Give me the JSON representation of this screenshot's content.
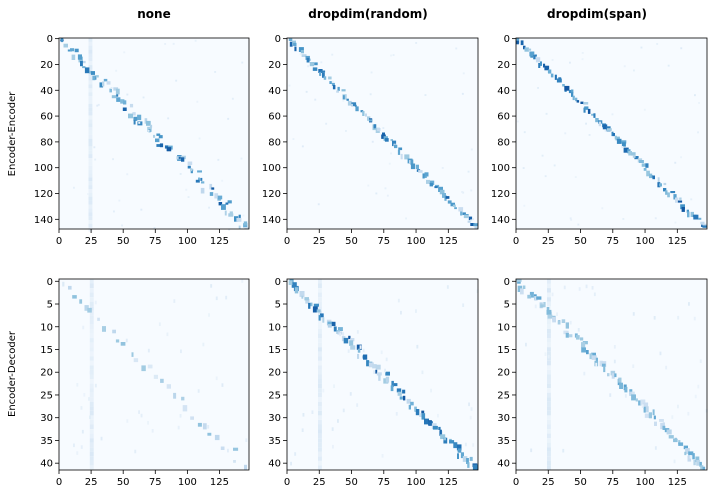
{
  "columns": [
    "none",
    "dropdim(random)",
    "dropdim(span)"
  ],
  "rows": [
    "Encoder-Encoder",
    "Encoder-Decoder"
  ],
  "chart_data": [
    {
      "type": "heatmap",
      "row": "Encoder-Encoder",
      "column": "none",
      "x_ticks": [
        0,
        25,
        50,
        75,
        100,
        125
      ],
      "y_ticks": [
        0,
        20,
        40,
        60,
        80,
        100,
        120,
        140
      ],
      "x_range": [
        0,
        148
      ],
      "y_range": [
        0,
        148
      ],
      "colormap": "Blues",
      "pattern": "diagonal",
      "band_width": 0.045,
      "background_stripe_x": 23
    },
    {
      "type": "heatmap",
      "row": "Encoder-Encoder",
      "column": "dropdim(random)",
      "x_ticks": [
        0,
        25,
        50,
        75,
        100,
        125
      ],
      "y_ticks": [
        0,
        20,
        40,
        60,
        80,
        100,
        120,
        140
      ],
      "x_range": [
        0,
        148
      ],
      "y_range": [
        0,
        148
      ],
      "colormap": "Blues",
      "pattern": "diagonal",
      "band_width": 0.02,
      "background_stripe_x": -1
    },
    {
      "type": "heatmap",
      "row": "Encoder-Encoder",
      "column": "dropdim(span)",
      "x_ticks": [
        0,
        25,
        50,
        75,
        100,
        125
      ],
      "y_ticks": [
        0,
        20,
        40,
        60,
        80,
        100,
        120,
        140
      ],
      "x_range": [
        0,
        148
      ],
      "y_range": [
        0,
        148
      ],
      "colormap": "Blues",
      "pattern": "diagonal",
      "band_width": 0.022,
      "background_stripe_x": -1
    },
    {
      "type": "heatmap",
      "row": "Encoder-Decoder",
      "column": "none",
      "x_ticks": [
        0,
        25,
        50,
        75,
        100,
        125
      ],
      "y_ticks": [
        0,
        5,
        10,
        15,
        20,
        25,
        30,
        35,
        40
      ],
      "x_range": [
        0,
        148
      ],
      "y_range": [
        0,
        42
      ],
      "colormap": "Blues",
      "pattern": "sparse",
      "band_width": 0.04,
      "background_stripe_x": 24
    },
    {
      "type": "heatmap",
      "row": "Encoder-Decoder",
      "column": "dropdim(random)",
      "x_ticks": [
        0,
        25,
        50,
        75,
        100,
        125
      ],
      "y_ticks": [
        0,
        5,
        10,
        15,
        20,
        25,
        30,
        35,
        40
      ],
      "x_range": [
        0,
        148
      ],
      "y_range": [
        0,
        42
      ],
      "colormap": "Blues",
      "pattern": "diagonal",
      "band_width": 0.03,
      "background_stripe_x": 24
    },
    {
      "type": "heatmap",
      "row": "Encoder-Decoder",
      "column": "dropdim(span)",
      "x_ticks": [
        0,
        25,
        50,
        75,
        100,
        125
      ],
      "y_ticks": [
        0,
        5,
        10,
        15,
        20,
        25,
        30,
        35,
        40
      ],
      "x_range": [
        0,
        148
      ],
      "y_range": [
        0,
        42
      ],
      "colormap": "Blues",
      "pattern": "diagonal-faint",
      "band_width": 0.035,
      "background_stripe_x": 24
    }
  ]
}
